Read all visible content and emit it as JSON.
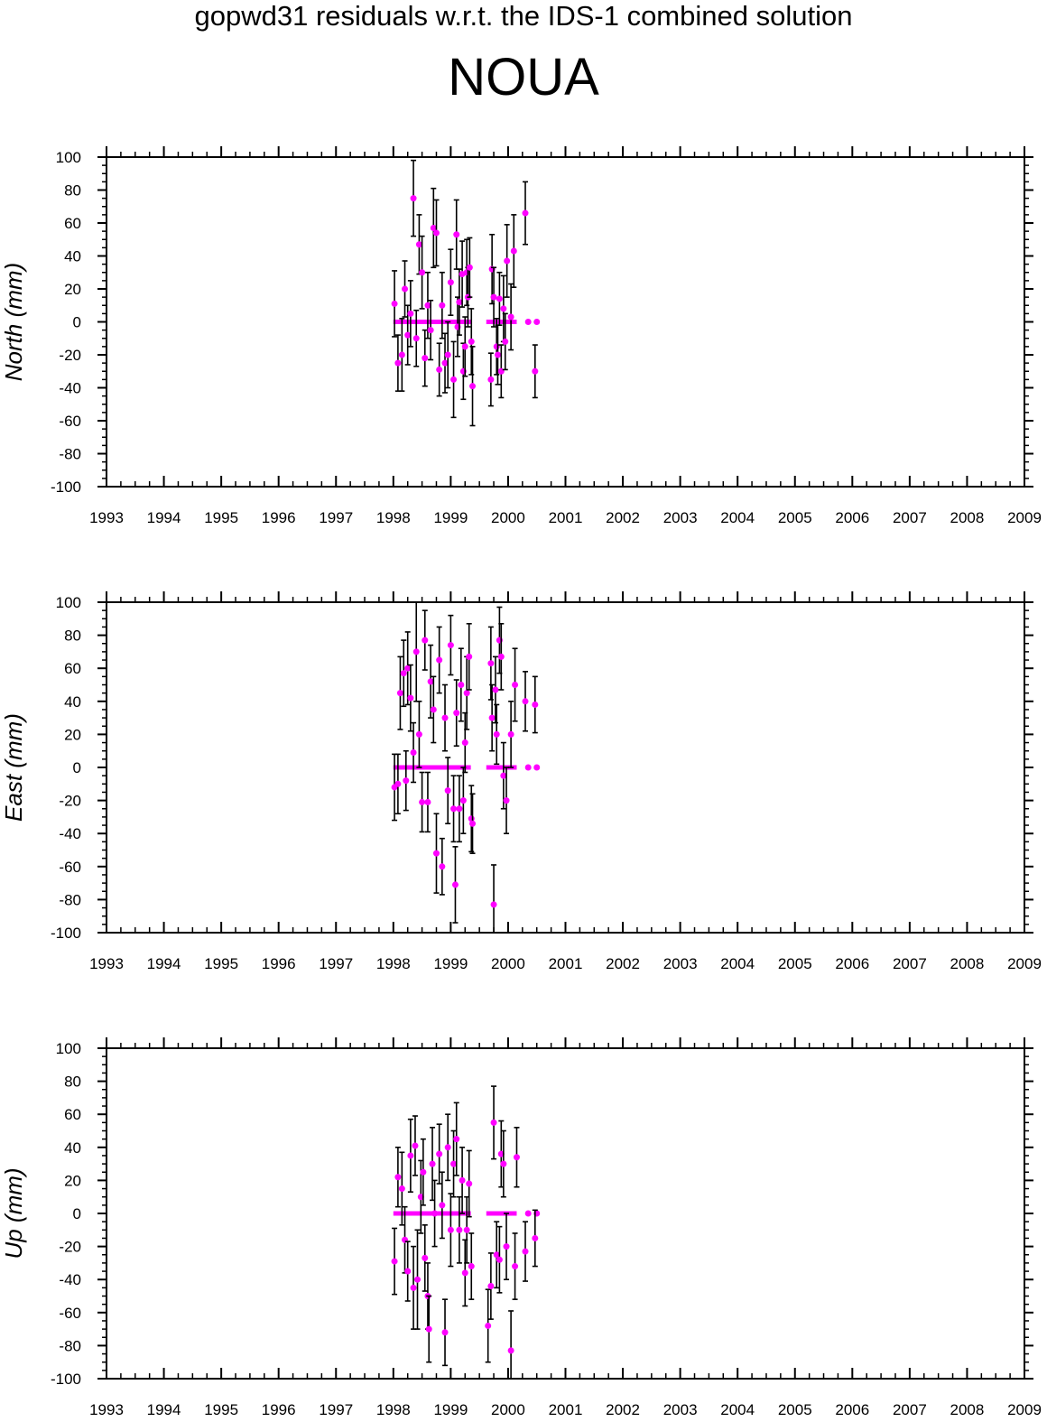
{
  "title": "gopwd31 residuals w.r.t. the IDS-1 combined solution",
  "station": "NOUA",
  "colors": {
    "marker": "#ff00ff",
    "errorbar": "#000000",
    "axes": "#000000"
  },
  "chart_data": [
    {
      "type": "scatter",
      "ylabel": "North (mm)",
      "xlim": [
        1993,
        2009
      ],
      "ylim": [
        -100,
        100
      ],
      "xticks": [
        1993,
        1994,
        1995,
        1996,
        1997,
        1998,
        1999,
        2000,
        2001,
        2002,
        2003,
        2004,
        2005,
        2006,
        2007,
        2008,
        2009
      ],
      "yticks": [
        100,
        80,
        60,
        40,
        20,
        0,
        -20,
        -40,
        -60,
        -80,
        -100
      ],
      "zero_series_x": [
        1998.0,
        1999.35,
        1999.62,
        2000.15,
        2000.35,
        2000.5
      ],
      "points": [
        {
          "x": 1998.02,
          "y": 11,
          "err": 20
        },
        {
          "x": 1998.08,
          "y": -25,
          "err": 17
        },
        {
          "x": 1998.15,
          "y": -20,
          "err": 22
        },
        {
          "x": 1998.2,
          "y": 20,
          "err": 17
        },
        {
          "x": 1998.25,
          "y": -8,
          "err": 18
        },
        {
          "x": 1998.3,
          "y": 5,
          "err": 20
        },
        {
          "x": 1998.35,
          "y": 75,
          "err": 23
        },
        {
          "x": 1998.4,
          "y": -10,
          "err": 17
        },
        {
          "x": 1998.45,
          "y": 47,
          "err": 18
        },
        {
          "x": 1998.5,
          "y": 30,
          "err": 22
        },
        {
          "x": 1998.55,
          "y": -22,
          "err": 17
        },
        {
          "x": 1998.6,
          "y": 10,
          "err": 20
        },
        {
          "x": 1998.65,
          "y": -5,
          "err": 18
        },
        {
          "x": 1998.7,
          "y": 57,
          "err": 24
        },
        {
          "x": 1998.75,
          "y": 54,
          "err": 20
        },
        {
          "x": 1998.8,
          "y": -29,
          "err": 16
        },
        {
          "x": 1998.85,
          "y": 10,
          "err": 20
        },
        {
          "x": 1998.9,
          "y": -25,
          "err": 18
        },
        {
          "x": 1998.95,
          "y": -20,
          "err": 20
        },
        {
          "x": 1999.0,
          "y": 24,
          "err": 20
        },
        {
          "x": 1999.05,
          "y": -35,
          "err": 23
        },
        {
          "x": 1999.1,
          "y": 53,
          "err": 21
        },
        {
          "x": 1999.12,
          "y": -3,
          "err": 18
        },
        {
          "x": 1999.15,
          "y": 12,
          "err": 20
        },
        {
          "x": 1999.2,
          "y": 29,
          "err": 20
        },
        {
          "x": 1999.22,
          "y": -30,
          "err": 17
        },
        {
          "x": 1999.25,
          "y": -15,
          "err": 18
        },
        {
          "x": 1999.28,
          "y": 30,
          "err": 20
        },
        {
          "x": 1999.3,
          "y": 15,
          "err": 18
        },
        {
          "x": 1999.33,
          "y": 33,
          "err": 18
        },
        {
          "x": 1999.36,
          "y": -12,
          "err": 20
        },
        {
          "x": 1999.38,
          "y": -39,
          "err": 24
        },
        {
          "x": 1999.7,
          "y": -35,
          "err": 16
        },
        {
          "x": 1999.72,
          "y": 32,
          "err": 21
        },
        {
          "x": 1999.75,
          "y": 15,
          "err": 18
        },
        {
          "x": 1999.8,
          "y": -15,
          "err": 17
        },
        {
          "x": 1999.82,
          "y": -20,
          "err": 18
        },
        {
          "x": 1999.85,
          "y": 14,
          "err": 16
        },
        {
          "x": 1999.88,
          "y": -30,
          "err": 16
        },
        {
          "x": 1999.92,
          "y": 8,
          "err": 20
        },
        {
          "x": 1999.95,
          "y": -12,
          "err": 17
        },
        {
          "x": 1999.98,
          "y": 37,
          "err": 22
        },
        {
          "x": 2000.05,
          "y": 3,
          "err": 20
        },
        {
          "x": 2000.1,
          "y": 43,
          "err": 22
        },
        {
          "x": 2000.3,
          "y": 66,
          "err": 19
        },
        {
          "x": 2000.47,
          "y": -30,
          "err": 16
        }
      ]
    },
    {
      "type": "scatter",
      "ylabel": "East (mm)",
      "xlim": [
        1993,
        2009
      ],
      "ylim": [
        -100,
        100
      ],
      "xticks": [
        1993,
        1994,
        1995,
        1996,
        1997,
        1998,
        1999,
        2000,
        2001,
        2002,
        2003,
        2004,
        2005,
        2006,
        2007,
        2008,
        2009
      ],
      "yticks": [
        100,
        80,
        60,
        40,
        20,
        0,
        -20,
        -40,
        -60,
        -80,
        -100
      ],
      "zero_series_x": [
        1998.0,
        1999.35,
        1999.62,
        2000.15,
        2000.35,
        2000.5
      ],
      "points": [
        {
          "x": 1998.02,
          "y": -12,
          "err": 20
        },
        {
          "x": 1998.08,
          "y": -10,
          "err": 18
        },
        {
          "x": 1998.12,
          "y": 45,
          "err": 22
        },
        {
          "x": 1998.18,
          "y": 57,
          "err": 20
        },
        {
          "x": 1998.22,
          "y": -8,
          "err": 18
        },
        {
          "x": 1998.25,
          "y": 60,
          "err": 22
        },
        {
          "x": 1998.3,
          "y": 42,
          "err": 20
        },
        {
          "x": 1998.35,
          "y": 9,
          "err": 18
        },
        {
          "x": 1998.4,
          "y": 70,
          "err": 30
        },
        {
          "x": 1998.45,
          "y": 20,
          "err": 20
        },
        {
          "x": 1998.5,
          "y": -21,
          "err": 18
        },
        {
          "x": 1998.55,
          "y": 77,
          "err": 18
        },
        {
          "x": 1998.6,
          "y": -21,
          "err": 18
        },
        {
          "x": 1998.65,
          "y": 52,
          "err": 22
        },
        {
          "x": 1998.7,
          "y": 35,
          "err": 20
        },
        {
          "x": 1998.75,
          "y": -52,
          "err": 24
        },
        {
          "x": 1998.8,
          "y": 65,
          "err": 20
        },
        {
          "x": 1998.85,
          "y": -60,
          "err": 17
        },
        {
          "x": 1998.9,
          "y": 30,
          "err": 20
        },
        {
          "x": 1998.95,
          "y": -14,
          "err": 20
        },
        {
          "x": 1999.0,
          "y": 74,
          "err": 18
        },
        {
          "x": 1999.05,
          "y": -25,
          "err": 20
        },
        {
          "x": 1999.08,
          "y": -71,
          "err": 23
        },
        {
          "x": 1999.1,
          "y": 33,
          "err": 20
        },
        {
          "x": 1999.15,
          "y": -25,
          "err": 20
        },
        {
          "x": 1999.18,
          "y": 50,
          "err": 22
        },
        {
          "x": 1999.22,
          "y": -20,
          "err": 20
        },
        {
          "x": 1999.25,
          "y": 15,
          "err": 18
        },
        {
          "x": 1999.28,
          "y": 45,
          "err": 22
        },
        {
          "x": 1999.32,
          "y": 67,
          "err": 20
        },
        {
          "x": 1999.36,
          "y": -31,
          "err": 20
        },
        {
          "x": 1999.38,
          "y": -34,
          "err": 18
        },
        {
          "x": 1999.7,
          "y": 63,
          "err": 22
        },
        {
          "x": 1999.72,
          "y": 30,
          "err": 20
        },
        {
          "x": 1999.75,
          "y": -83,
          "err": 24
        },
        {
          "x": 1999.78,
          "y": 47,
          "err": 20
        },
        {
          "x": 1999.8,
          "y": 20,
          "err": 18
        },
        {
          "x": 1999.85,
          "y": 77,
          "err": 20
        },
        {
          "x": 1999.88,
          "y": 67,
          "err": 20
        },
        {
          "x": 1999.92,
          "y": -5,
          "err": 20
        },
        {
          "x": 1999.97,
          "y": -20,
          "err": 20
        },
        {
          "x": 2000.05,
          "y": 20,
          "err": 20
        },
        {
          "x": 2000.12,
          "y": 50,
          "err": 22
        },
        {
          "x": 2000.3,
          "y": 40,
          "err": 18
        },
        {
          "x": 2000.47,
          "y": 38,
          "err": 17
        }
      ]
    },
    {
      "type": "scatter",
      "ylabel": "Up (mm)",
      "xlim": [
        1993,
        2009
      ],
      "ylim": [
        -100,
        100
      ],
      "xticks": [
        1993,
        1994,
        1995,
        1996,
        1997,
        1998,
        1999,
        2000,
        2001,
        2002,
        2003,
        2004,
        2005,
        2006,
        2007,
        2008,
        2009
      ],
      "yticks": [
        100,
        80,
        60,
        40,
        20,
        0,
        -20,
        -40,
        -60,
        -80,
        -100
      ],
      "zero_series_x": [
        1998.0,
        1999.35,
        1999.62,
        2000.15,
        2000.35,
        2000.5
      ],
      "points": [
        {
          "x": 1998.02,
          "y": -29,
          "err": 20
        },
        {
          "x": 1998.08,
          "y": 22,
          "err": 18
        },
        {
          "x": 1998.15,
          "y": 15,
          "err": 22
        },
        {
          "x": 1998.2,
          "y": -16,
          "err": 20
        },
        {
          "x": 1998.25,
          "y": -35,
          "err": 18
        },
        {
          "x": 1998.3,
          "y": 35,
          "err": 22
        },
        {
          "x": 1998.35,
          "y": -45,
          "err": 25
        },
        {
          "x": 1998.38,
          "y": 41,
          "err": 18
        },
        {
          "x": 1998.42,
          "y": -40,
          "err": 30
        },
        {
          "x": 1998.48,
          "y": 10,
          "err": 22
        },
        {
          "x": 1998.52,
          "y": 25,
          "err": 20
        },
        {
          "x": 1998.55,
          "y": -27,
          "err": 20
        },
        {
          "x": 1998.6,
          "y": -50,
          "err": 20
        },
        {
          "x": 1998.62,
          "y": -70,
          "err": 20
        },
        {
          "x": 1998.68,
          "y": 30,
          "err": 22
        },
        {
          "x": 1998.72,
          "y": 0,
          "err": 20
        },
        {
          "x": 1998.8,
          "y": 36,
          "err": 18
        },
        {
          "x": 1998.85,
          "y": 5,
          "err": 20
        },
        {
          "x": 1998.9,
          "y": -72,
          "err": 20
        },
        {
          "x": 1998.95,
          "y": 40,
          "err": 20
        },
        {
          "x": 1999.0,
          "y": -10,
          "err": 22
        },
        {
          "x": 1999.05,
          "y": 30,
          "err": 20
        },
        {
          "x": 1999.1,
          "y": 45,
          "err": 22
        },
        {
          "x": 1999.15,
          "y": -10,
          "err": 20
        },
        {
          "x": 1999.2,
          "y": 20,
          "err": 20
        },
        {
          "x": 1999.25,
          "y": -36,
          "err": 20
        },
        {
          "x": 1999.28,
          "y": -10,
          "err": 20
        },
        {
          "x": 1999.32,
          "y": 18,
          "err": 20
        },
        {
          "x": 1999.36,
          "y": -32,
          "err": 20
        },
        {
          "x": 1999.65,
          "y": -68,
          "err": 22
        },
        {
          "x": 1999.7,
          "y": -44,
          "err": 20
        },
        {
          "x": 1999.75,
          "y": 55,
          "err": 22
        },
        {
          "x": 1999.8,
          "y": -25,
          "err": 20
        },
        {
          "x": 1999.85,
          "y": -28,
          "err": 20
        },
        {
          "x": 1999.88,
          "y": 36,
          "err": 20
        },
        {
          "x": 1999.92,
          "y": 30,
          "err": 20
        },
        {
          "x": 1999.97,
          "y": -20,
          "err": 20
        },
        {
          "x": 2000.05,
          "y": -83,
          "err": 24
        },
        {
          "x": 2000.12,
          "y": -32,
          "err": 20
        },
        {
          "x": 2000.15,
          "y": 34,
          "err": 18
        },
        {
          "x": 2000.3,
          "y": -23,
          "err": 18
        },
        {
          "x": 2000.47,
          "y": -15,
          "err": 17
        }
      ]
    }
  ]
}
